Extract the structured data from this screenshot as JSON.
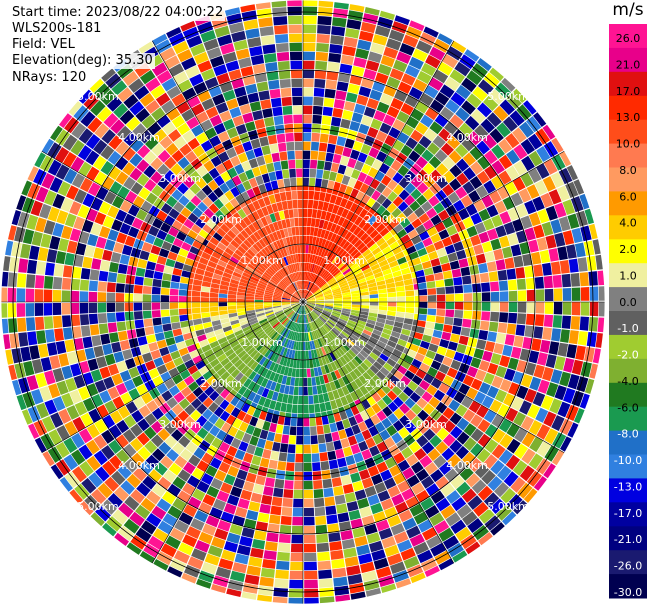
{
  "header": {
    "start_time": "Start time: 2023/08/22 04:00:22",
    "instrument": "WLS200s-181",
    "field": "Field: VEL",
    "elevation": "Elevation(deg): 35.30",
    "nrays": "NRays: 120"
  },
  "colorbar": {
    "unit": "m/s",
    "ticks": [
      "26.0",
      "21.0",
      "17.0",
      "13.0",
      "10.0",
      "8.0",
      "6.0",
      "4.0",
      "2.0",
      "1.0",
      "0.0",
      "-1.0",
      "-2.0",
      "-4.0",
      "-6.0",
      "-8.0",
      "-10.0",
      "-13.0",
      "-17.0",
      "-21.0",
      "-26.0",
      "-30.0"
    ],
    "colors": [
      "#ff1493",
      "#e8008a",
      "#e01010",
      "#ff2a00",
      "#ff4d1a",
      "#ff7a50",
      "#ff9a60",
      "#ff9a00",
      "#ffcc00",
      "#ffff00",
      "#f0f0a0",
      "#808080",
      "#606060",
      "#a0cc30",
      "#7fb030",
      "#207a20",
      "#1a9a50",
      "#2070c8",
      "#3080e0",
      "#0000e0",
      "#0000a0",
      "#000080",
      "#1a1a70",
      "#000050"
    ],
    "label_colors": [
      "#000",
      "#000",
      "#000",
      "#000",
      "#000",
      "#000",
      "#000",
      "#000",
      "#000",
      "#000",
      "#000",
      "#fff",
      "#fff",
      "#000",
      "#000",
      "#fff",
      "#fff",
      "#fff",
      "#fff",
      "#fff",
      "#fff",
      "#fff"
    ]
  },
  "chart_data": {
    "type": "heatmap",
    "projection": "polar-ppi",
    "field": "VEL",
    "units": "m/s",
    "nrays": 120,
    "range_rings_km": [
      1.0,
      2.0,
      3.0,
      4.0,
      5.0
    ],
    "ring_labels": [
      "1.00km",
      "2.00km",
      "3.00km",
      "4.00km",
      "5.00km"
    ],
    "clim": [
      -30.0,
      26.0
    ],
    "valid_range_km": 2.0,
    "max_range_km": 5.2,
    "valid_sectors": [
      {
        "azimuth_from_deg": 270,
        "azimuth_to_deg": 360,
        "velocity": 11.0
      },
      {
        "azimuth_from_deg": 0,
        "azimuth_to_deg": 50,
        "velocity": 15.0
      },
      {
        "azimuth_from_deg": 50,
        "azimuth_to_deg": 85,
        "velocity": 2.5
      },
      {
        "azimuth_from_deg": 85,
        "azimuth_to_deg": 100,
        "velocity": 1.0
      },
      {
        "azimuth_from_deg": 100,
        "azimuth_to_deg": 135,
        "velocity": -1.5
      },
      {
        "azimuth_from_deg": 135,
        "azimuth_to_deg": 165,
        "velocity": -5.0
      },
      {
        "azimuth_from_deg": 165,
        "azimuth_to_deg": 215,
        "velocity": -9.5
      },
      {
        "azimuth_from_deg": 215,
        "azimuth_to_deg": 245,
        "velocity": -5.0
      },
      {
        "azimuth_from_deg": 245,
        "azimuth_to_deg": 260,
        "velocity": 0.0
      },
      {
        "azimuth_from_deg": 260,
        "azimuth_to_deg": 270,
        "velocity": 2.5
      }
    ],
    "beyond_valid_range": "noise"
  }
}
